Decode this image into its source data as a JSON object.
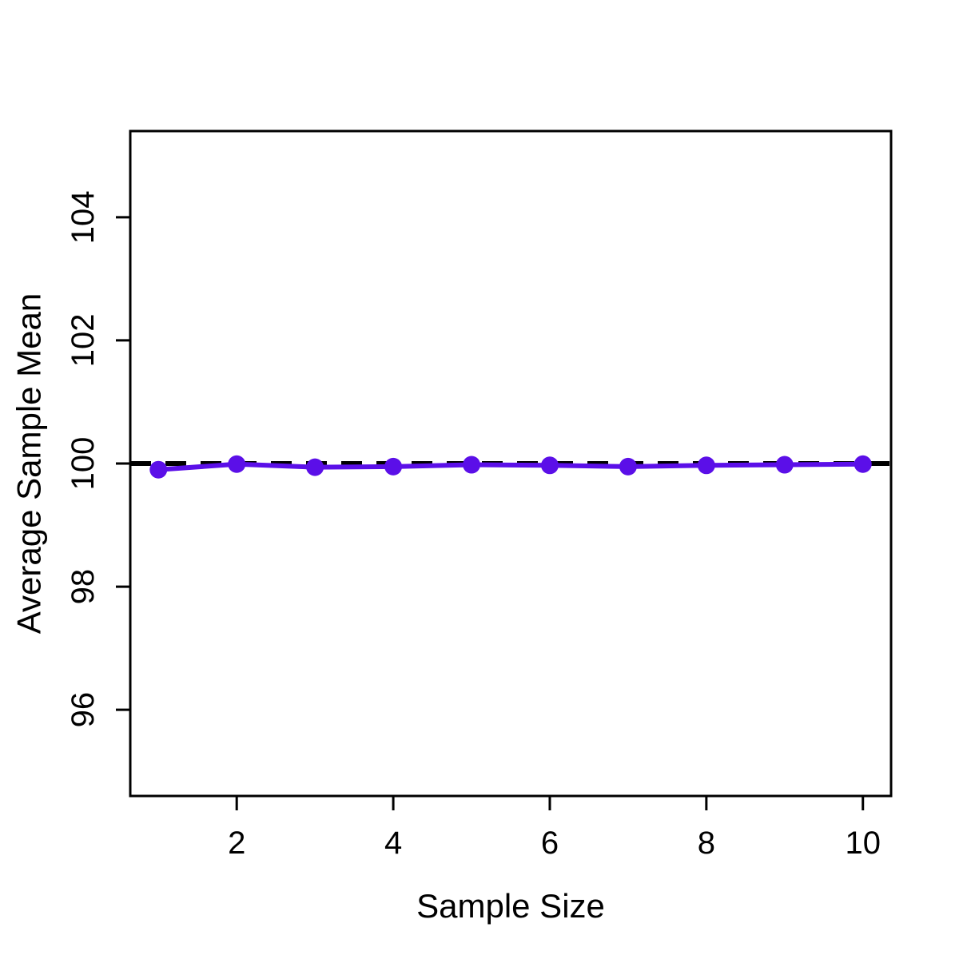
{
  "chart_data": {
    "type": "line",
    "title": "",
    "xlabel": "Sample Size",
    "ylabel": "Average Sample Mean",
    "xlim": [
      0.64,
      10.36
    ],
    "ylim": [
      94.6,
      105.4
    ],
    "x_ticks": [
      2,
      4,
      6,
      8,
      10
    ],
    "x_tick_labels": [
      "2",
      "4",
      "6",
      "8",
      "10"
    ],
    "y_ticks": [
      96,
      98,
      100,
      102,
      104
    ],
    "y_tick_labels": [
      "96",
      "98",
      "100",
      "102",
      "104"
    ],
    "grid": false,
    "legend": "none",
    "reference_line": {
      "y": 100,
      "style": "dashed",
      "color": "#000000"
    },
    "series": [
      {
        "color": "#5b0fe8",
        "marker": "filled-circle",
        "x": [
          1,
          2,
          3,
          4,
          5,
          6,
          7,
          8,
          9,
          10
        ],
        "y": [
          99.9,
          99.99,
          99.94,
          99.95,
          99.98,
          99.97,
          99.95,
          99.97,
          99.98,
          99.99
        ]
      }
    ]
  }
}
